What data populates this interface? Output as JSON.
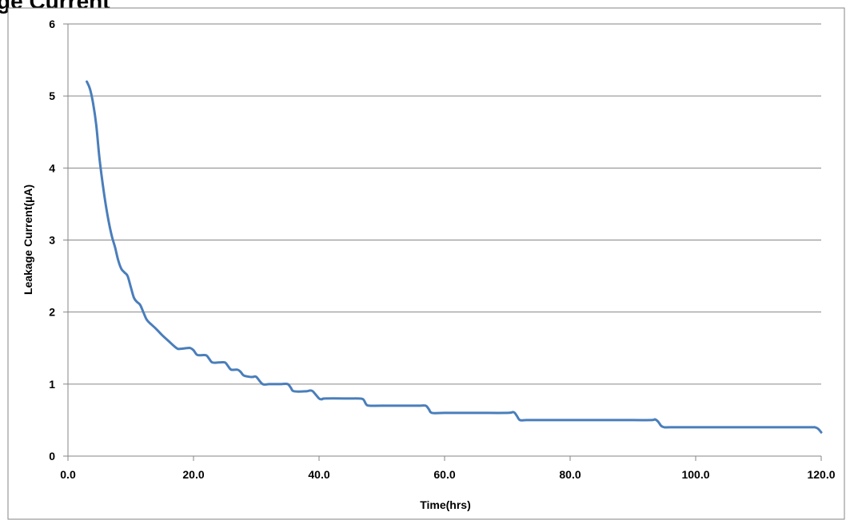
{
  "header": {
    "title_fragment": "ge Current"
  },
  "chart_data": {
    "type": "line",
    "title": "",
    "xlabel": "Time(hrs)",
    "ylabel": "Leakage Current(µA)",
    "xlim": [
      0,
      120
    ],
    "ylim": [
      0,
      6
    ],
    "x_ticks": [
      "0.0",
      "20.0",
      "40.0",
      "60.0",
      "80.0",
      "100.0",
      "120.0"
    ],
    "y_ticks": [
      "0",
      "1",
      "2",
      "3",
      "4",
      "5",
      "6"
    ],
    "grid": "horizontal",
    "series_color": "#4a7ebb",
    "series": [
      {
        "x": [
          3.0,
          3.5,
          4.0,
          4.5,
          5.0,
          5.5,
          6.0,
          6.5,
          7.0,
          7.5,
          8.0,
          8.5,
          9.0,
          9.5,
          10.0,
          10.5,
          11.0,
          11.5,
          12.0,
          12.5,
          13.0,
          14.0,
          15.0,
          16.0,
          17.0,
          17.5,
          18.0,
          19.0,
          19.5,
          20.0,
          20.5,
          21.0,
          22.0,
          22.5,
          23.0,
          24.0,
          25.0,
          25.5,
          26.0,
          27.0,
          27.5,
          28.0,
          29.0,
          29.5,
          30.0,
          31.0,
          32.0,
          33.0,
          34.0,
          35.0,
          35.5,
          36.0,
          38.0,
          38.5,
          39.0,
          40.0,
          40.5,
          41.0,
          45.0,
          46.0,
          47.0,
          47.5,
          48.0,
          50.0,
          55.0,
          56.0,
          57.0,
          57.5,
          58.0,
          60.0,
          65.0,
          70.0,
          71.0,
          71.5,
          72.0,
          73.0,
          75.0,
          80.0,
          85.0,
          90.0,
          93.0,
          93.5,
          94.0,
          94.5,
          95.0,
          96.0,
          100.0,
          110.0,
          118.0,
          119.0,
          119.5,
          120.0
        ],
        "y": [
          5.2,
          5.1,
          4.9,
          4.6,
          4.15,
          3.8,
          3.5,
          3.25,
          3.05,
          2.9,
          2.72,
          2.6,
          2.55,
          2.5,
          2.35,
          2.2,
          2.14,
          2.1,
          2.0,
          1.9,
          1.85,
          1.77,
          1.68,
          1.6,
          1.52,
          1.49,
          1.49,
          1.5,
          1.5,
          1.47,
          1.41,
          1.4,
          1.4,
          1.35,
          1.3,
          1.3,
          1.3,
          1.25,
          1.2,
          1.2,
          1.17,
          1.12,
          1.1,
          1.1,
          1.1,
          1.0,
          1.0,
          1.0,
          1.0,
          1.0,
          0.95,
          0.9,
          0.9,
          0.91,
          0.9,
          0.8,
          0.79,
          0.8,
          0.8,
          0.8,
          0.79,
          0.72,
          0.7,
          0.7,
          0.7,
          0.7,
          0.7,
          0.65,
          0.6,
          0.6,
          0.6,
          0.6,
          0.61,
          0.56,
          0.5,
          0.5,
          0.5,
          0.5,
          0.5,
          0.5,
          0.5,
          0.51,
          0.48,
          0.42,
          0.4,
          0.4,
          0.4,
          0.4,
          0.4,
          0.4,
          0.38,
          0.33
        ]
      }
    ]
  }
}
